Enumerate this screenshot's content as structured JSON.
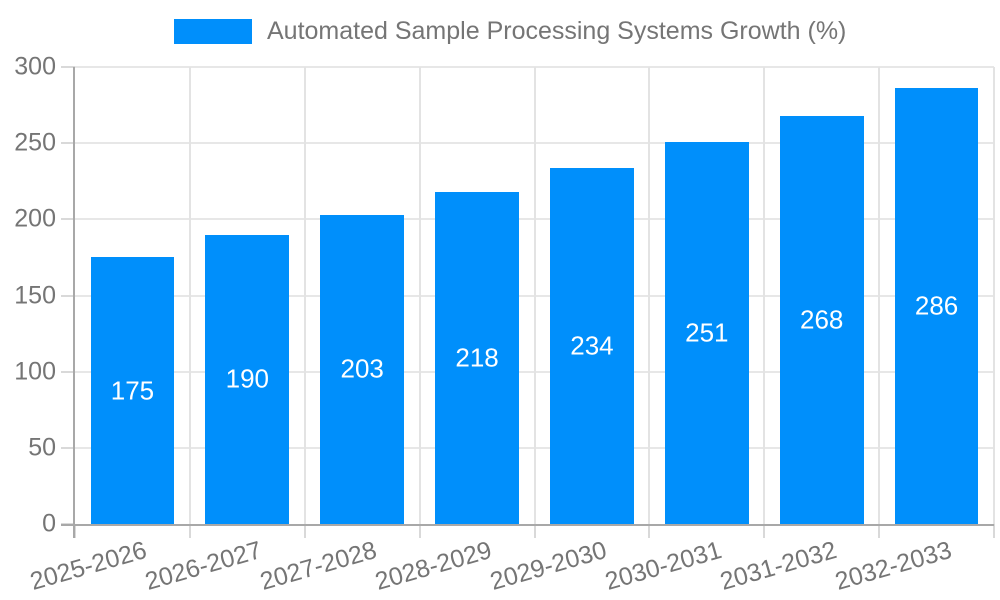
{
  "chart_data": {
    "type": "bar",
    "title": "Automated Sample Processing Systems Growth (%)",
    "categories": [
      "2025-2026",
      "2026-2027",
      "2027-2028",
      "2028-2029",
      "2029-2030",
      "2030-2031",
      "2031-2032",
      "2032-2033"
    ],
    "values": [
      175,
      190,
      203,
      218,
      234,
      251,
      268,
      286
    ],
    "xlabel": "",
    "ylabel": "",
    "ylim": [
      0,
      300
    ],
    "yticks": [
      0,
      50,
      100,
      150,
      200,
      250,
      300
    ],
    "grid": "on",
    "legend_position": "top",
    "bar_color": "#008FFB",
    "bar_label_color": "#ffffff",
    "axis_text_color": "#757575",
    "grid_color": "#e7e7e7",
    "axis_line_color": "#a8a8a8"
  }
}
